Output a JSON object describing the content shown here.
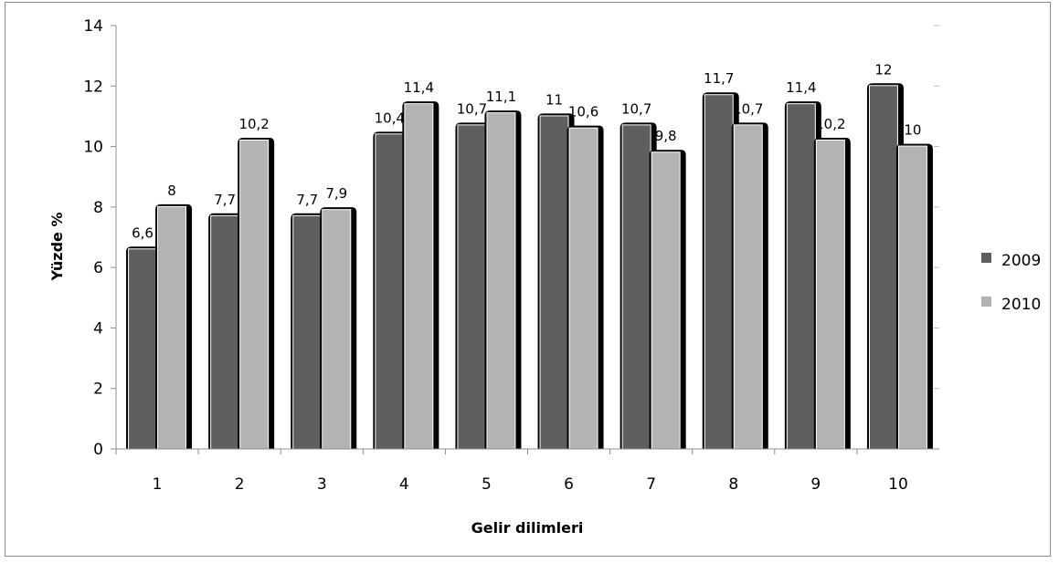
{
  "chart_data": {
    "type": "bar",
    "title": "",
    "xlabel": "Gelir dilimleri",
    "ylabel": "Yüzde %",
    "ylim": [
      0,
      14
    ],
    "yticks": [
      0,
      2,
      4,
      6,
      8,
      10,
      12,
      14
    ],
    "grid": false,
    "legend_position": "right",
    "categories": [
      "1",
      "2",
      "3",
      "4",
      "5",
      "6",
      "7",
      "8",
      "9",
      "10"
    ],
    "series": [
      {
        "name": "2009",
        "color": "#5f5f5f",
        "values": [
          6.6,
          7.7,
          7.7,
          10.4,
          10.7,
          11,
          10.7,
          11.7,
          11.4,
          12
        ],
        "labels": [
          "6,6",
          "7,7",
          "7,7",
          "10,4",
          "10,7",
          "11",
          "10,7",
          "11,7",
          "11,4",
          "12"
        ]
      },
      {
        "name": "2010",
        "color": "#b3b3b3",
        "values": [
          8,
          10.2,
          7.9,
          11.4,
          11.1,
          10.6,
          9.8,
          10.7,
          10.2,
          10
        ],
        "labels": [
          "8",
          "10,2",
          "7,9",
          "11,4",
          "11,1",
          "10,6",
          "9,8",
          "10,7",
          "10,2",
          "10"
        ]
      }
    ]
  }
}
